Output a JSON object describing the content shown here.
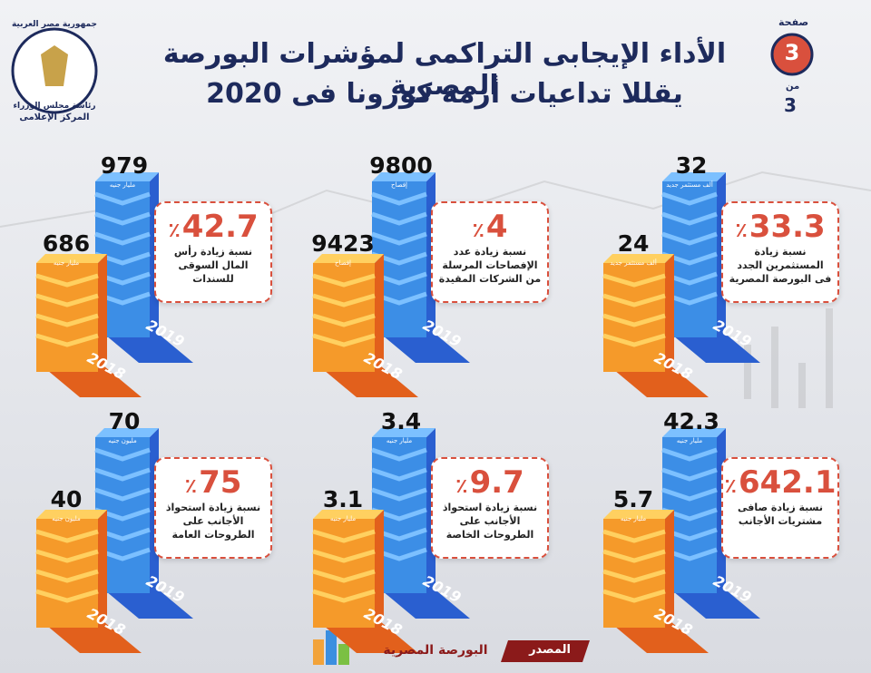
{
  "header": {
    "page_label": "صفحة",
    "page_number": "3",
    "of_label": "من",
    "total_pages": "3",
    "title_line1": "الأداء الإيجابى التراكمى لمؤشرات البورصة المصرية",
    "title_line2": "يقللا تداعيات أزمة كورونا فى 2020"
  },
  "logo": {
    "line1": "جمهورية مصر العربية",
    "line2": "رئاسة مجلس الوزراء",
    "line3": "المركز الإعلامى"
  },
  "panels": [
    {
      "value_2019": "32",
      "unit_2019": "ألف مستثمر جديد",
      "value_2018": "24",
      "unit_2018": "ألف مستثمر جديد",
      "percent": "33.3",
      "percent_sign": "٪",
      "description": "نسبة زيادة المستثمرين الجدد فى البورصة المصرية",
      "year_2019": "2019",
      "year_2018": "2018"
    },
    {
      "value_2019": "9800",
      "unit_2019": "إفصاح",
      "value_2018": "9423",
      "unit_2018": "إفصاح",
      "percent": "4",
      "percent_sign": "٪",
      "description": "نسبة زيادة عدد الإفصاحات المرسلة من الشركات المقيدة",
      "year_2019": "2019",
      "year_2018": "2018"
    },
    {
      "value_2019": "979",
      "unit_2019": "مليار جنيه",
      "value_2018": "686",
      "unit_2018": "مليار جنيه",
      "percent": "42.7",
      "percent_sign": "٪",
      "description": "نسبة زيادة رأس المال السوقى للسندات",
      "year_2019": "2019",
      "year_2018": "2018"
    },
    {
      "value_2019": "42.3",
      "unit_2019": "مليار جنيه",
      "value_2018": "5.7",
      "unit_2018": "مليار جنيه",
      "percent": "642.1",
      "percent_sign": "٪",
      "description": "نسبة زيادة صافى مشتريات الأجانب",
      "year_2019": "2019",
      "year_2018": "2018"
    },
    {
      "value_2019": "3.4",
      "unit_2019": "مليار جنيه",
      "value_2018": "3.1",
      "unit_2018": "مليار جنيه",
      "percent": "9.7",
      "percent_sign": "٪",
      "description": "نسبة زيادة استحواذ الأجانب على الطروحات الخاصة",
      "year_2019": "2019",
      "year_2018": "2018"
    },
    {
      "value_2019": "70",
      "unit_2019": "مليون جنيه",
      "value_2018": "40",
      "unit_2018": "مليون جنيه",
      "percent": "75",
      "percent_sign": "٪",
      "description": "نسبة زيادة استحواذ الأجانب على الطروحات العامة",
      "year_2019": "2019",
      "year_2018": "2018"
    }
  ],
  "footer": {
    "source_label": "المصدر",
    "source": "البورصة المصرية"
  }
}
